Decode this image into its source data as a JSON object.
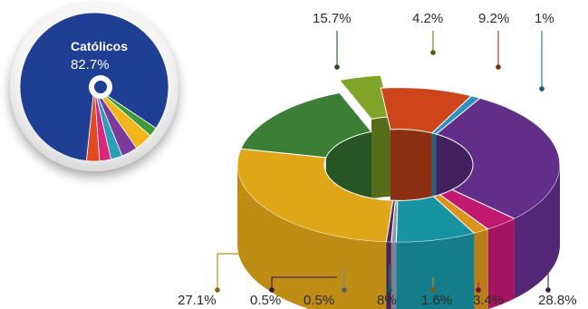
{
  "chart_data": [
    {
      "type": "pie",
      "label": "Católicos",
      "value_text": "82.7%",
      "slices": [
        {
          "value": 82.7,
          "color": "#1f3f94"
        },
        {
          "value": 2.0,
          "color": "#3f9a3a"
        },
        {
          "value": 4.0,
          "color": "#f2b51a"
        },
        {
          "value": 3.5,
          "color": "#7c3a9a"
        },
        {
          "value": 2.5,
          "color": "#2aa0b8"
        },
        {
          "value": 2.5,
          "color": "#d8277d"
        },
        {
          "value": 2.8,
          "color": "#e04a1d"
        }
      ]
    },
    {
      "type": "pie",
      "style": "3d-donut",
      "slices": [
        {
          "label": "15.7%",
          "value": 15.7,
          "color": "#3f8a3a"
        },
        {
          "label": "4.2%",
          "value": 4.2,
          "color": "#8ab22a"
        },
        {
          "label": "9.2%",
          "value": 9.2,
          "color": "#e04a1d"
        },
        {
          "label": "1%",
          "value": 1.0,
          "color": "#2f9fd2"
        },
        {
          "label": "28.8%",
          "value": 28.8,
          "color": "#6a3296"
        },
        {
          "label": "3.4%",
          "value": 3.4,
          "color": "#d21a7a"
        },
        {
          "label": "1.6%",
          "value": 1.6,
          "color": "#f0a020"
        },
        {
          "label": "8%",
          "value": 8.0,
          "color": "#1aa0b0"
        },
        {
          "label": "0.5%",
          "value": 0.5,
          "color": "#9aaab8"
        },
        {
          "label": "0.5%",
          "value": 0.5,
          "color": "#5a2a6a"
        },
        {
          "label": "27.1%",
          "value": 27.1,
          "color": "#f2b51a"
        }
      ]
    }
  ]
}
